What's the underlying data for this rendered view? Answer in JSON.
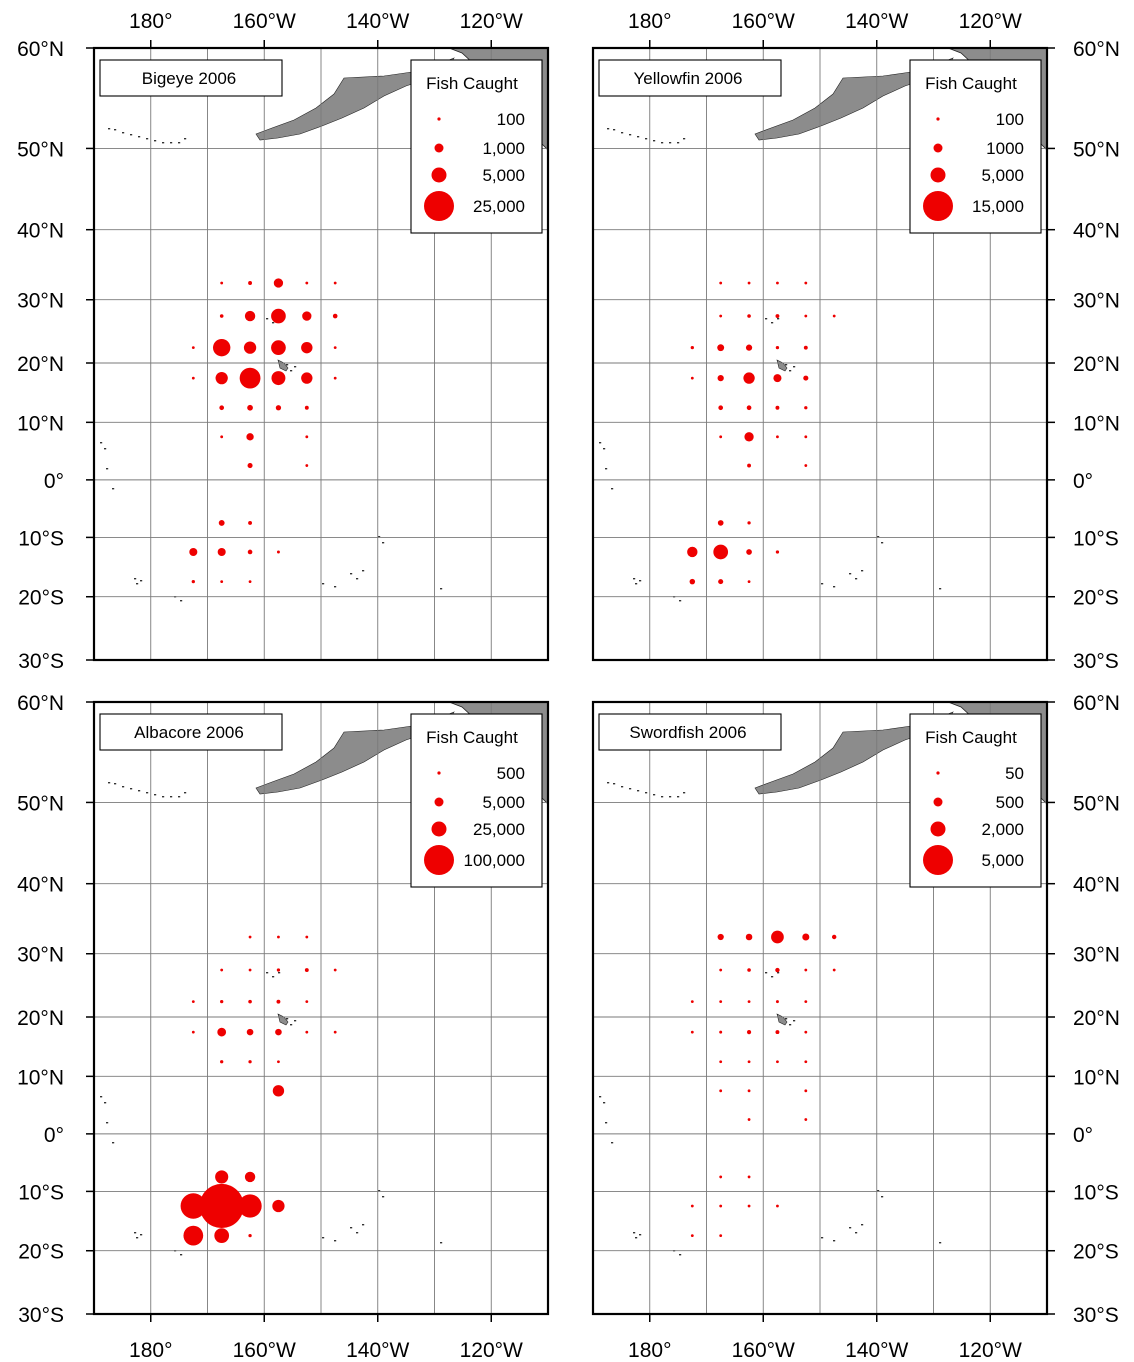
{
  "colors": {
    "bubble": "#ee0000",
    "land": "#8c8c8c",
    "grid": "#7a7a7a",
    "frame": "#000000"
  },
  "axes": {
    "lon_ticks": [
      {
        "lon": 180,
        "label": "180°"
      },
      {
        "lon": -160,
        "label": "160°W"
      },
      {
        "lon": -140,
        "label": "140°W"
      },
      {
        "lon": -120,
        "label": "120°W"
      }
    ],
    "lat_ticks": [
      {
        "lat": 60,
        "label": "60°N"
      },
      {
        "lat": 50,
        "label": "50°N"
      },
      {
        "lat": 40,
        "label": "40°N"
      },
      {
        "lat": 30,
        "label": "30°N"
      },
      {
        "lat": 20,
        "label": "20°N"
      },
      {
        "lat": 10,
        "label": "10°N"
      },
      {
        "lat": 0,
        "label": "0°"
      },
      {
        "lat": -10,
        "label": "10°S"
      },
      {
        "lat": -20,
        "label": "20°S"
      },
      {
        "lat": -30,
        "label": "30°S"
      }
    ],
    "lon_range": [
      170,
      250
    ],
    "lat_range": [
      -30,
      60
    ]
  },
  "panels": [
    {
      "id": "bigeye",
      "title": "Bigeye 2006",
      "legend": {
        "title": "Fish Caught",
        "items": [
          {
            "label": "100",
            "value": 100
          },
          {
            "label": "1,000",
            "value": 1000
          },
          {
            "label": "5,000",
            "value": 5000
          },
          {
            "label": "25,000",
            "value": 25000
          }
        ]
      },
      "points": [
        [
          -167.5,
          32.5,
          150
        ],
        [
          -162.5,
          32.5,
          700
        ],
        [
          -157.5,
          32.5,
          4000
        ],
        [
          -152.5,
          32.5,
          300
        ],
        [
          -147.5,
          32.5,
          80
        ],
        [
          -167.5,
          27.5,
          600
        ],
        [
          -162.5,
          27.5,
          5000
        ],
        [
          -157.5,
          27.5,
          10000
        ],
        [
          -152.5,
          27.5,
          4000
        ],
        [
          -147.5,
          27.5,
          1000
        ],
        [
          -172.5,
          22.5,
          80
        ],
        [
          -167.5,
          22.5,
          14000
        ],
        [
          -162.5,
          22.5,
          7000
        ],
        [
          -157.5,
          22.5,
          10000
        ],
        [
          -152.5,
          22.5,
          6000
        ],
        [
          -147.5,
          22.5,
          60
        ],
        [
          -172.5,
          17.5,
          80
        ],
        [
          -167.5,
          17.5,
          7000
        ],
        [
          -162.5,
          17.5,
          20000
        ],
        [
          -157.5,
          17.5,
          9000
        ],
        [
          -152.5,
          17.5,
          6000
        ],
        [
          -147.5,
          17.5,
          60
        ],
        [
          -167.5,
          12.5,
          1000
        ],
        [
          -162.5,
          12.5,
          1500
        ],
        [
          -157.5,
          12.5,
          1300
        ],
        [
          -152.5,
          12.5,
          700
        ],
        [
          -167.5,
          7.5,
          120
        ],
        [
          -162.5,
          7.5,
          2500
        ],
        [
          -152.5,
          7.5,
          80
        ],
        [
          -162.5,
          2.5,
          1200
        ],
        [
          -152.5,
          2.5,
          80
        ],
        [
          -167.5,
          -7.5,
          1600
        ],
        [
          -162.5,
          -7.5,
          700
        ],
        [
          -172.5,
          -12.5,
          3000
        ],
        [
          -167.5,
          -12.5,
          3000
        ],
        [
          -162.5,
          -12.5,
          1000
        ],
        [
          -157.5,
          -12.5,
          400
        ],
        [
          -172.5,
          -17.5,
          500
        ],
        [
          -167.5,
          -17.5,
          150
        ],
        [
          -162.5,
          -17.5,
          80
        ]
      ]
    },
    {
      "id": "yellowfin",
      "title": "Yellowfin 2006",
      "legend": {
        "title": "Fish Caught",
        "items": [
          {
            "label": "100",
            "value": 100
          },
          {
            "label": "1000",
            "value": 1000
          },
          {
            "label": "5,000",
            "value": 5000
          },
          {
            "label": "15,000",
            "value": 15000
          }
        ]
      },
      "points": [
        [
          -167.5,
          32.5,
          80
        ],
        [
          -162.5,
          32.5,
          100
        ],
        [
          -157.5,
          32.5,
          200
        ],
        [
          -152.5,
          32.5,
          150
        ],
        [
          -167.5,
          27.5,
          100
        ],
        [
          -162.5,
          27.5,
          600
        ],
        [
          -157.5,
          27.5,
          700
        ],
        [
          -152.5,
          27.5,
          300
        ],
        [
          -147.5,
          27.5,
          70
        ],
        [
          -172.5,
          22.5,
          500
        ],
        [
          -167.5,
          22.5,
          2200
        ],
        [
          -162.5,
          22.5,
          1800
        ],
        [
          -157.5,
          22.5,
          500
        ],
        [
          -152.5,
          22.5,
          700
        ],
        [
          -172.5,
          17.5,
          150
        ],
        [
          -167.5,
          17.5,
          1800
        ],
        [
          -162.5,
          17.5,
          6000
        ],
        [
          -157.5,
          17.5,
          3000
        ],
        [
          -152.5,
          17.5,
          1200
        ],
        [
          -167.5,
          12.5,
          1000
        ],
        [
          -162.5,
          12.5,
          1000
        ],
        [
          -157.5,
          12.5,
          700
        ],
        [
          -152.5,
          12.5,
          500
        ],
        [
          -167.5,
          7.5,
          300
        ],
        [
          -162.5,
          7.5,
          4000
        ],
        [
          -157.5,
          7.5,
          100
        ],
        [
          -152.5,
          7.5,
          80
        ],
        [
          -162.5,
          2.5,
          700
        ],
        [
          -152.5,
          2.5,
          300
        ],
        [
          -167.5,
          -7.5,
          1500
        ],
        [
          -162.5,
          -7.5,
          500
        ],
        [
          -172.5,
          -12.5,
          5000
        ],
        [
          -167.5,
          -12.5,
          10000
        ],
        [
          -162.5,
          -12.5,
          1500
        ],
        [
          -157.5,
          -12.5,
          500
        ],
        [
          -172.5,
          -17.5,
          1400
        ],
        [
          -167.5,
          -17.5,
          1200
        ],
        [
          -162.5,
          -17.5,
          150
        ]
      ]
    },
    {
      "id": "albacore",
      "title": "Albacore 2006",
      "legend": {
        "title": "Fish Caught",
        "items": [
          {
            "label": "500",
            "value": 500
          },
          {
            "label": "5,000",
            "value": 5000
          },
          {
            "label": "25,000",
            "value": 25000
          },
          {
            "label": "100,000",
            "value": 100000
          }
        ]
      },
      "points": [
        [
          -162.5,
          32.5,
          350
        ],
        [
          -157.5,
          32.5,
          350
        ],
        [
          -152.5,
          32.5,
          300
        ],
        [
          -167.5,
          27.5,
          250
        ],
        [
          -162.5,
          27.5,
          300
        ],
        [
          -157.5,
          27.5,
          500
        ],
        [
          -152.5,
          27.5,
          700
        ],
        [
          -147.5,
          27.5,
          300
        ],
        [
          -172.5,
          22.5,
          250
        ],
        [
          -167.5,
          22.5,
          500
        ],
        [
          -162.5,
          22.5,
          600
        ],
        [
          -157.5,
          22.5,
          700
        ],
        [
          -152.5,
          22.5,
          300
        ],
        [
          -172.5,
          17.5,
          250
        ],
        [
          -167.5,
          17.5,
          3500
        ],
        [
          -162.5,
          17.5,
          2000
        ],
        [
          -157.5,
          17.5,
          2000
        ],
        [
          -152.5,
          17.5,
          300
        ],
        [
          -147.5,
          17.5,
          300
        ],
        [
          -167.5,
          12.5,
          500
        ],
        [
          -162.5,
          12.5,
          500
        ],
        [
          -157.5,
          12.5,
          300
        ],
        [
          -157.5,
          7.5,
          6000
        ],
        [
          -167.5,
          -7.5,
          8000
        ],
        [
          -162.5,
          -7.5,
          5000
        ],
        [
          -172.5,
          -12.5,
          30000
        ],
        [
          -167.5,
          -12.5,
          90000
        ],
        [
          -162.5,
          -12.5,
          25000
        ],
        [
          -157.5,
          -12.5,
          7000
        ],
        [
          -172.5,
          -17.5,
          18000
        ],
        [
          -167.5,
          -17.5,
          10000
        ],
        [
          -162.5,
          -17.5,
          500
        ]
      ]
    },
    {
      "id": "swordfish",
      "title": "Swordfish 2006",
      "legend": {
        "title": "Fish Caught",
        "items": [
          {
            "label": "50",
            "value": 50
          },
          {
            "label": "500",
            "value": 500
          },
          {
            "label": "2,000",
            "value": 2000
          },
          {
            "label": "5,000",
            "value": 5000
          }
        ]
      },
      "points": [
        [
          -167.5,
          32.5,
          1800
        ],
        [
          -162.5,
          32.5,
          2000
        ],
        [
          -157.5,
          32.5,
          7500
        ],
        [
          -152.5,
          32.5,
          2300
        ],
        [
          -147.5,
          32.5,
          900
        ],
        [
          -167.5,
          27.5,
          200
        ],
        [
          -162.5,
          27.5,
          600
        ],
        [
          -157.5,
          27.5,
          900
        ],
        [
          -152.5,
          27.5,
          300
        ],
        [
          -147.5,
          27.5,
          60
        ],
        [
          -172.5,
          22.5,
          30
        ],
        [
          -167.5,
          22.5,
          300
        ],
        [
          -162.5,
          22.5,
          250
        ],
        [
          -157.5,
          22.5,
          400
        ],
        [
          -152.5,
          22.5,
          350
        ],
        [
          -172.5,
          17.5,
          30
        ],
        [
          -167.5,
          17.5,
          400
        ],
        [
          -162.5,
          17.5,
          800
        ],
        [
          -157.5,
          17.5,
          700
        ],
        [
          -152.5,
          17.5,
          300
        ],
        [
          -167.5,
          12.5,
          250
        ],
        [
          -162.5,
          12.5,
          250
        ],
        [
          -157.5,
          12.5,
          250
        ],
        [
          -152.5,
          12.5,
          250
        ],
        [
          -167.5,
          7.5,
          50
        ],
        [
          -162.5,
          7.5,
          100
        ],
        [
          -152.5,
          7.5,
          80
        ],
        [
          -162.5,
          2.5,
          120
        ],
        [
          -152.5,
          2.5,
          80
        ],
        [
          -167.5,
          -7.5,
          60
        ],
        [
          -162.5,
          -7.5,
          60
        ],
        [
          -172.5,
          -12.5,
          150
        ],
        [
          -167.5,
          -12.5,
          250
        ],
        [
          -162.5,
          -12.5,
          150
        ],
        [
          -157.5,
          -12.5,
          60
        ],
        [
          -172.5,
          -17.5,
          30
        ],
        [
          -167.5,
          -17.5,
          30
        ]
      ]
    }
  ]
}
